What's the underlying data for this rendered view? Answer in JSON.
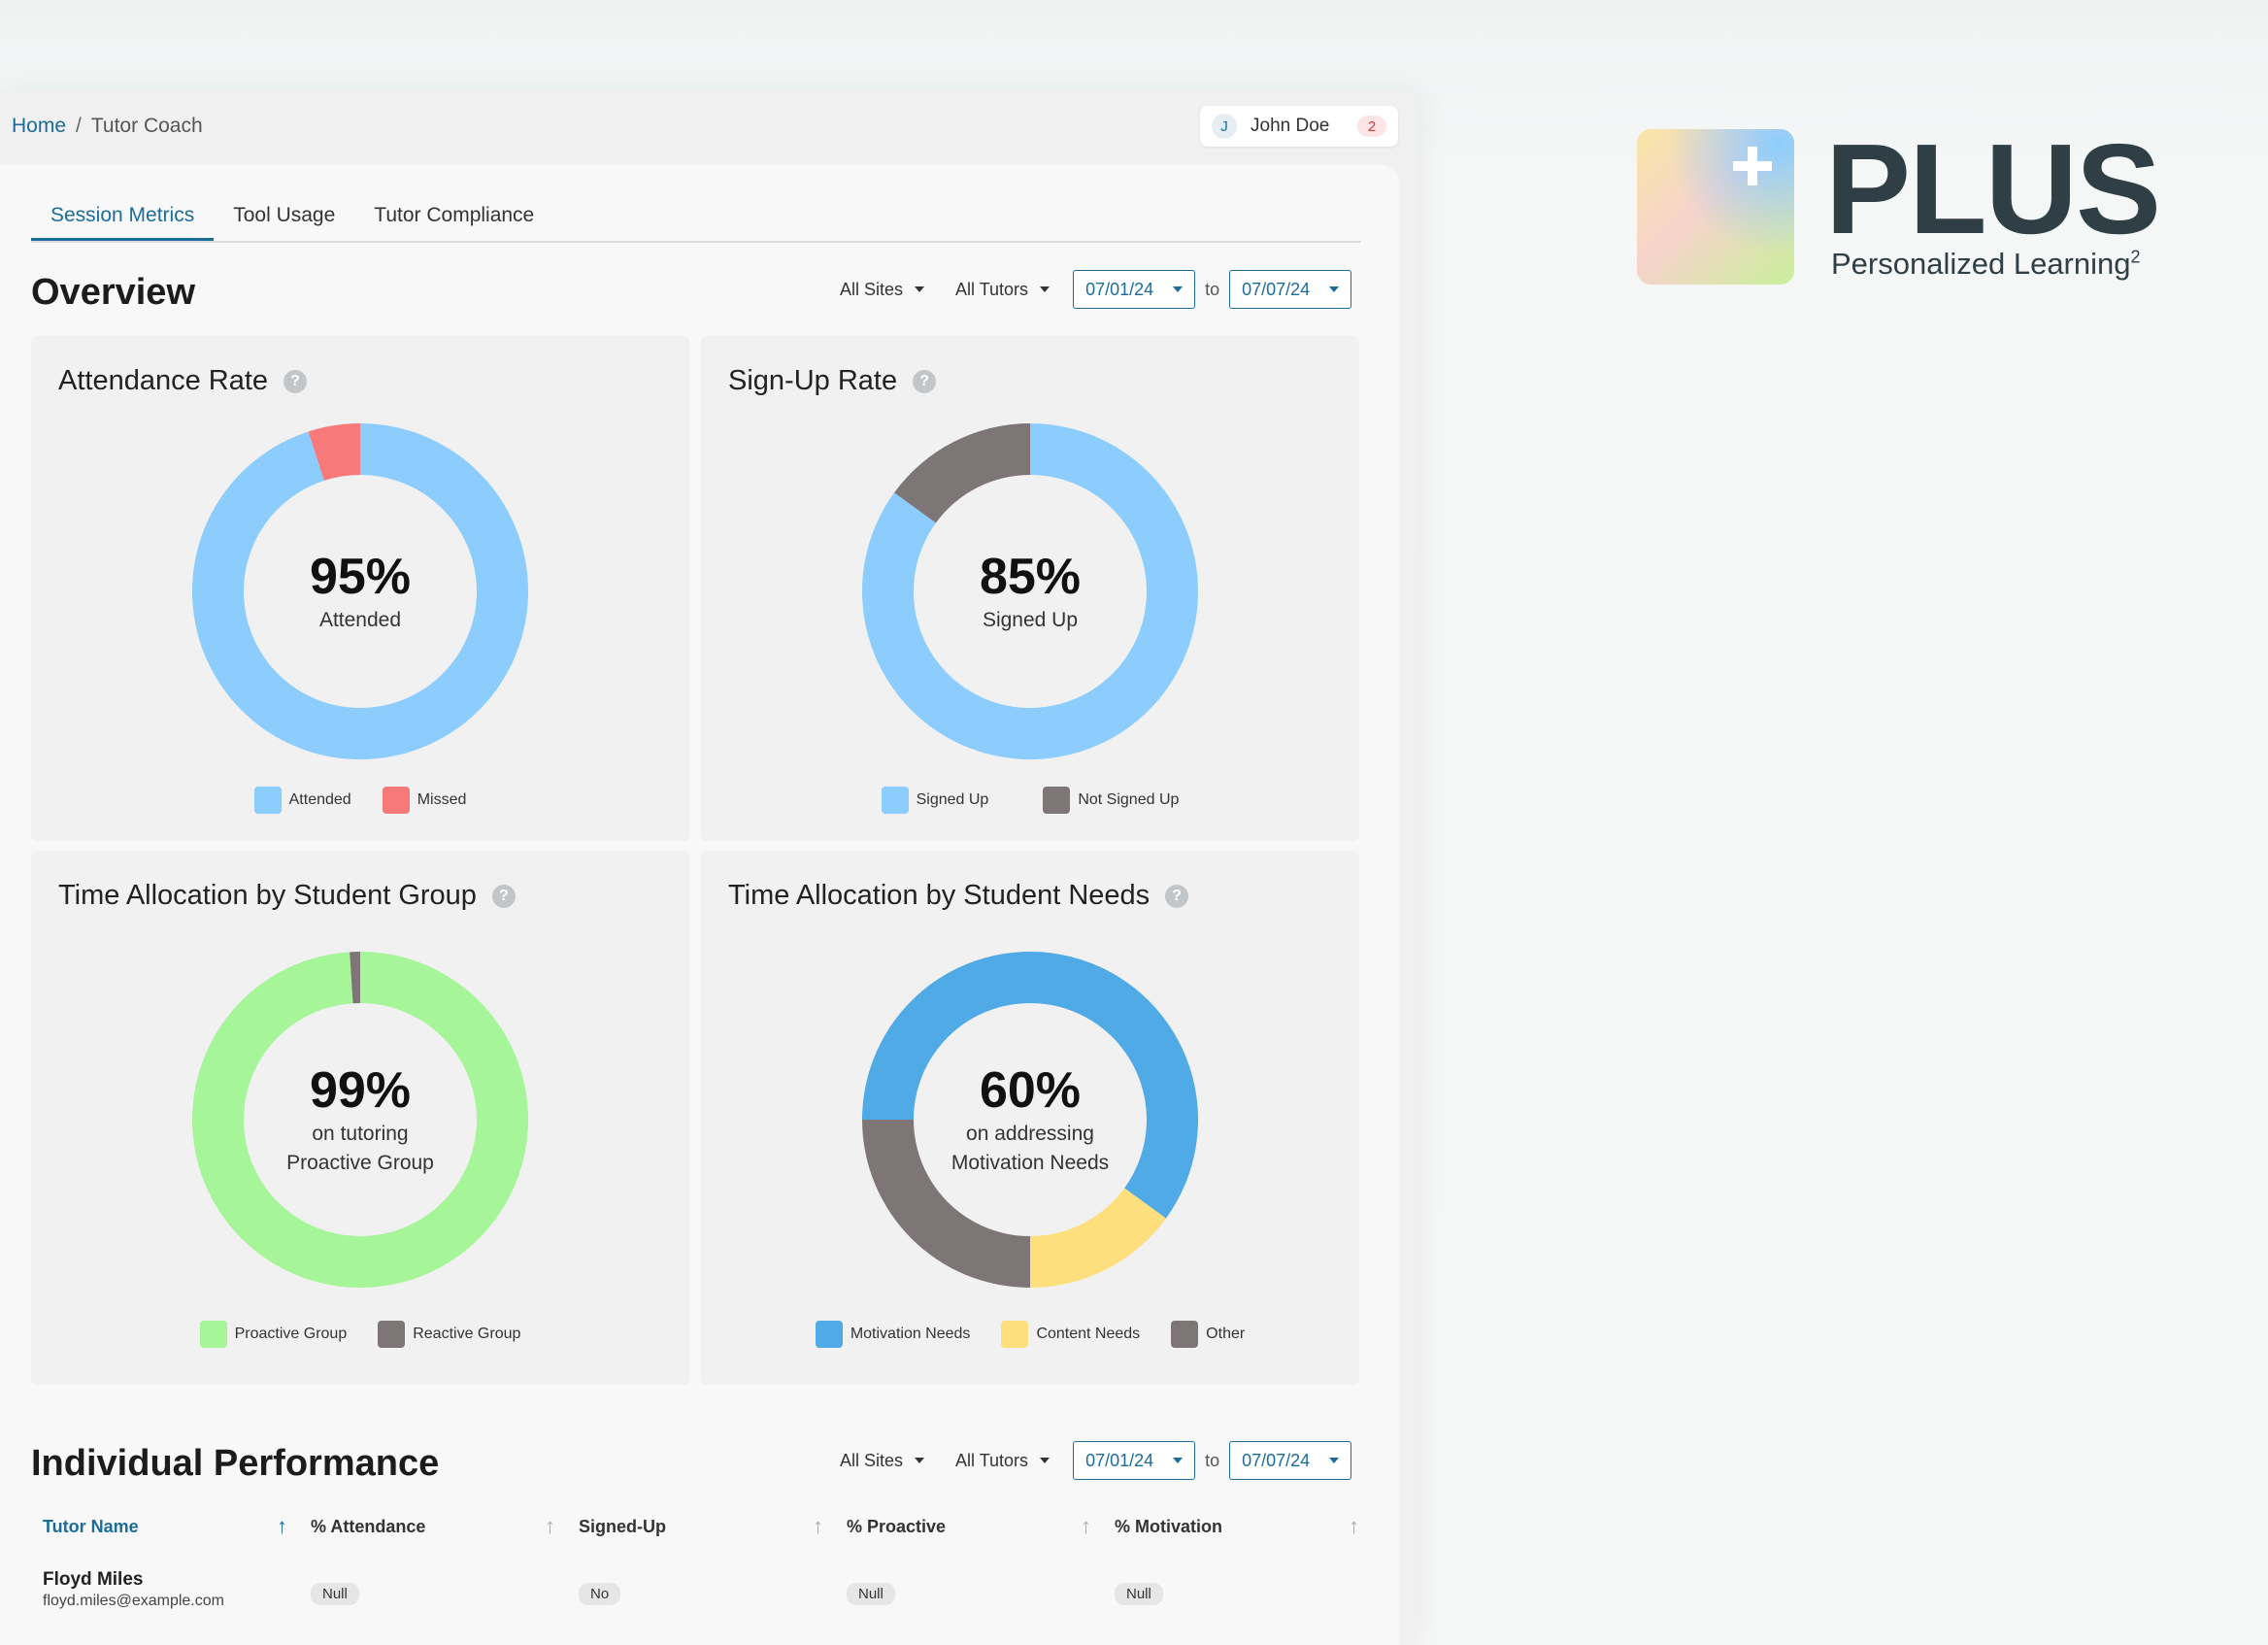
{
  "breadcrumb": {
    "home": "Home",
    "separator": "/",
    "current": "Tutor Coach"
  },
  "user": {
    "initial": "J",
    "name": "John Doe",
    "notifications": "2"
  },
  "tabs": [
    {
      "label": "Session Metrics",
      "active": true
    },
    {
      "label": "Tool Usage",
      "active": false
    },
    {
      "label": "Tutor Compliance",
      "active": false
    }
  ],
  "overview": {
    "title": "Overview",
    "filters": {
      "sites": "All Sites",
      "tutors": "All Tutors",
      "date_from": "07/01/24",
      "to_label": "to",
      "date_to": "07/07/24"
    }
  },
  "colors": {
    "light_blue": "#8ccdfd",
    "red": "#f87979",
    "gray": "#7d7576",
    "green": "#a6f598",
    "blue": "#50aae6",
    "yellow": "#fde07d",
    "accent": "#1b6c99"
  },
  "chart_data": [
    {
      "type": "pie",
      "title": "Attendance Rate",
      "center_value": "95%",
      "center_label": "Attended",
      "slices": [
        {
          "name": "Attended",
          "value": 95,
          "color": "#8ccdfd"
        },
        {
          "name": "Missed",
          "value": 5,
          "color": "#f87979"
        }
      ]
    },
    {
      "type": "pie",
      "title": "Sign-Up Rate",
      "center_value": "85%",
      "center_label": "Signed Up",
      "slices": [
        {
          "name": "Signed Up",
          "value": 85,
          "color": "#8ccdfd"
        },
        {
          "name": "Not Signed Up",
          "value": 15,
          "color": "#7d7576"
        }
      ]
    },
    {
      "type": "pie",
      "title": "Time Allocation by Student Group",
      "center_value": "99%",
      "center_label": "on tutoring\nProactive Group",
      "slices": [
        {
          "name": "Proactive Group",
          "value": 99,
          "color": "#a6f598"
        },
        {
          "name": "Reactive Group",
          "value": 1,
          "color": "#7d7576"
        }
      ]
    },
    {
      "type": "pie",
      "title": "Time Allocation by Student Needs",
      "center_value": "60%",
      "center_label": "on addressing\nMotivation Needs",
      "slices": [
        {
          "name": "Motivation Needs",
          "value": 60,
          "color": "#50aae6"
        },
        {
          "name": "Content Needs",
          "value": 15,
          "color": "#fde07d"
        },
        {
          "name": "Other",
          "value": 25,
          "color": "#7d7576"
        }
      ]
    }
  ],
  "performance": {
    "title": "Individual Performance",
    "filters": {
      "sites": "All Sites",
      "tutors": "All Tutors",
      "date_from": "07/01/24",
      "to_label": "to",
      "date_to": "07/07/24"
    },
    "columns": [
      "Tutor Name",
      "% Attendance",
      "Signed-Up",
      "% Proactive",
      "% Motivation"
    ],
    "rows": [
      {
        "name": "Floyd Miles",
        "email": "floyd.miles@example.com",
        "attendance": "Null",
        "signed_up": "No",
        "proactive": "Null",
        "motivation": "Null"
      }
    ]
  },
  "brand": {
    "word": "PLUS",
    "tagline": "Personalized Learning",
    "superscript": "2"
  }
}
